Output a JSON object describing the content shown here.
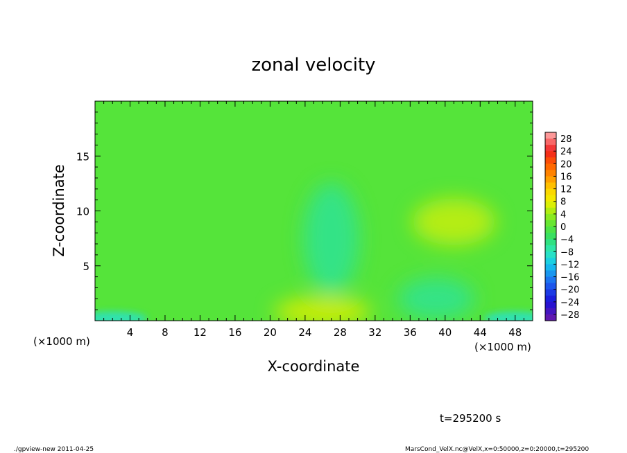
{
  "chart_data": {
    "type": "heatmap",
    "title": "zonal velocity",
    "xlabel": "X-coordinate",
    "ylabel": "Z-coordinate",
    "x_unit_left": "(×1000 m)",
    "x_unit_right": "(×1000 m)",
    "xlim": [
      0,
      50
    ],
    "ylim": [
      0,
      20
    ],
    "x_ticks": [
      4,
      8,
      12,
      16,
      20,
      24,
      28,
      32,
      36,
      40,
      44,
      48
    ],
    "y_ticks": [
      5,
      10,
      15
    ],
    "time_label": "t=295200 s",
    "colorbar": {
      "min": -30,
      "max": 30,
      "step": 2,
      "tick_labels": [
        28,
        24,
        20,
        16,
        12,
        8,
        4,
        0,
        -4,
        -8,
        -12,
        -16,
        -20,
        -24,
        -28
      ]
    },
    "field_features": [
      {
        "x": 26,
        "z": 0.8,
        "value": 7
      },
      {
        "x": 41,
        "z": 9.0,
        "value": 6
      },
      {
        "x": 27,
        "z": 7.5,
        "value": -6
      },
      {
        "x": 39,
        "z": 2.0,
        "value": -6
      },
      {
        "x": 2,
        "z": 0.2,
        "value": -9
      },
      {
        "x": 48,
        "z": 0.2,
        "value": -9
      }
    ],
    "grid": false,
    "legend_placement": "right"
  },
  "footer": {
    "left": "./gpview-new  2011-04-25",
    "right": "MarsCond_VelX.nc@VelX,x=0:50000,z=0:20000,t=295200"
  }
}
